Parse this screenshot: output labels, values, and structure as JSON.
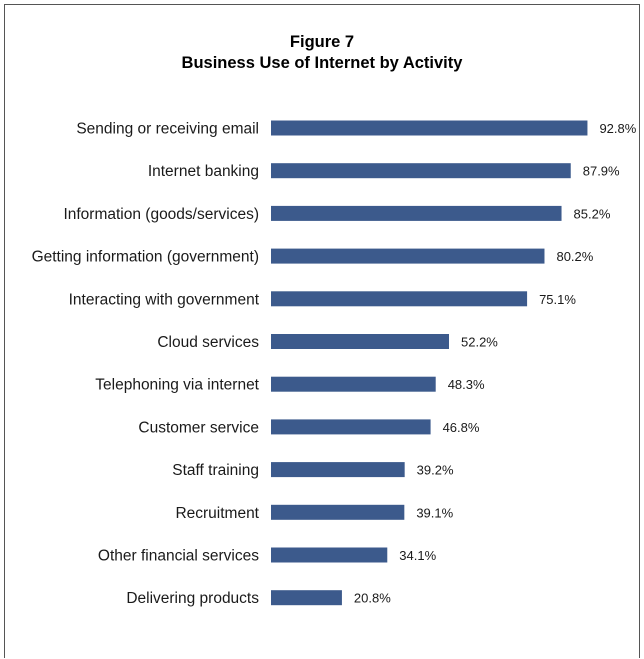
{
  "chart_data": {
    "type": "bar",
    "orientation": "horizontal",
    "title": [
      "Figure 7",
      "Business Use of Internet by Activity"
    ],
    "categories": [
      "Sending or receiving email",
      "Internet banking",
      "Information (goods/services)",
      "Getting information (government)",
      "Interacting with government",
      "Cloud services",
      "Telephoning via internet",
      "Customer service",
      "Staff training",
      "Recruitment",
      "Other financial services",
      "Delivering products"
    ],
    "values": [
      92.8,
      87.9,
      85.2,
      80.2,
      75.1,
      52.2,
      48.3,
      46.8,
      39.2,
      39.1,
      34.1,
      20.8
    ],
    "value_labels": [
      "92.8%",
      "87.9%",
      "85.2%",
      "80.2%",
      "75.1%",
      "52.2%",
      "48.3%",
      "46.8%",
      "39.2%",
      "39.1%",
      "34.1%",
      "20.8%"
    ],
    "xlim": [
      0,
      100
    ],
    "grid": false,
    "legend": "none",
    "bar_color": "#3c5a8c"
  }
}
